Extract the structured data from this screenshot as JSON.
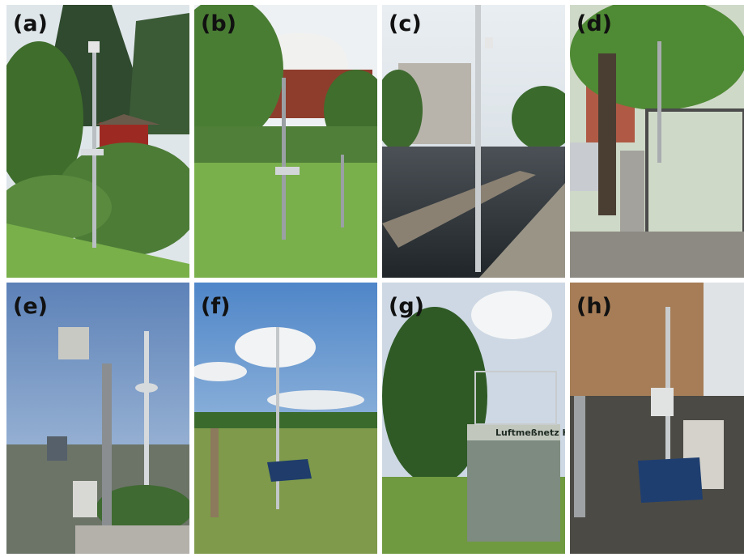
{
  "panels": [
    {
      "label": "(a)"
    },
    {
      "label": "(b)"
    },
    {
      "label": "(c)"
    },
    {
      "label": "(d)"
    },
    {
      "label": "(e)"
    },
    {
      "label": "(f)"
    },
    {
      "label": "(g)",
      "sign": "Luftmeßnetz Ha"
    },
    {
      "label": "(h)"
    }
  ]
}
